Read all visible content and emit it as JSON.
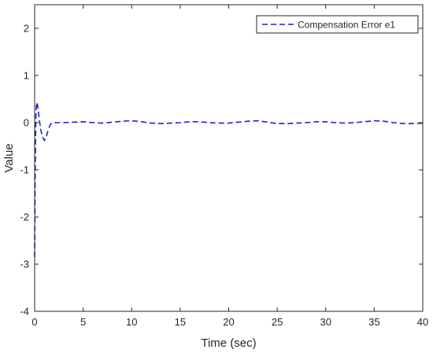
{
  "chart_data": {
    "type": "line",
    "xlabel": "Time (sec)",
    "ylabel": "Value",
    "xlim": [
      0,
      40
    ],
    "ylim": [
      -4,
      2.5
    ],
    "xticks": [
      0,
      5,
      10,
      15,
      20,
      25,
      30,
      35,
      40
    ],
    "yticks": [
      -4,
      -3,
      -2,
      -1,
      0,
      1,
      2
    ],
    "grid": false,
    "legend": {
      "placement": "top-right"
    },
    "series": [
      {
        "name": "Compensation Error e1",
        "color": "#1f1fd6",
        "line_style": "dashed",
        "x": [
          0,
          0.05,
          0.12,
          0.2,
          0.3,
          0.45,
          0.6,
          0.8,
          1.0,
          1.2,
          1.4,
          1.6,
          1.8,
          2.0,
          3,
          4,
          5,
          6,
          7,
          8,
          9,
          10,
          11,
          12,
          13,
          14,
          15,
          16,
          17,
          18,
          19,
          20,
          21,
          22,
          23,
          24,
          25,
          26,
          27,
          28,
          29,
          30,
          31,
          32,
          33,
          34,
          35,
          36,
          37,
          38,
          39,
          40
        ],
        "y": [
          -2.85,
          -1.2,
          0.1,
          0.43,
          0.38,
          0.12,
          -0.12,
          -0.3,
          -0.38,
          -0.3,
          -0.15,
          -0.05,
          0.0,
          0.0,
          0.0,
          0.01,
          0.02,
          0.0,
          -0.01,
          0.01,
          0.03,
          0.04,
          0.02,
          -0.01,
          -0.02,
          -0.01,
          0.0,
          0.02,
          0.02,
          0.0,
          -0.01,
          -0.01,
          0.01,
          0.03,
          0.04,
          0.01,
          -0.02,
          -0.02,
          -0.01,
          0.0,
          0.02,
          0.02,
          0.0,
          -0.01,
          0.0,
          0.02,
          0.04,
          0.03,
          0.0,
          -0.02,
          -0.02,
          -0.01
        ]
      }
    ]
  }
}
